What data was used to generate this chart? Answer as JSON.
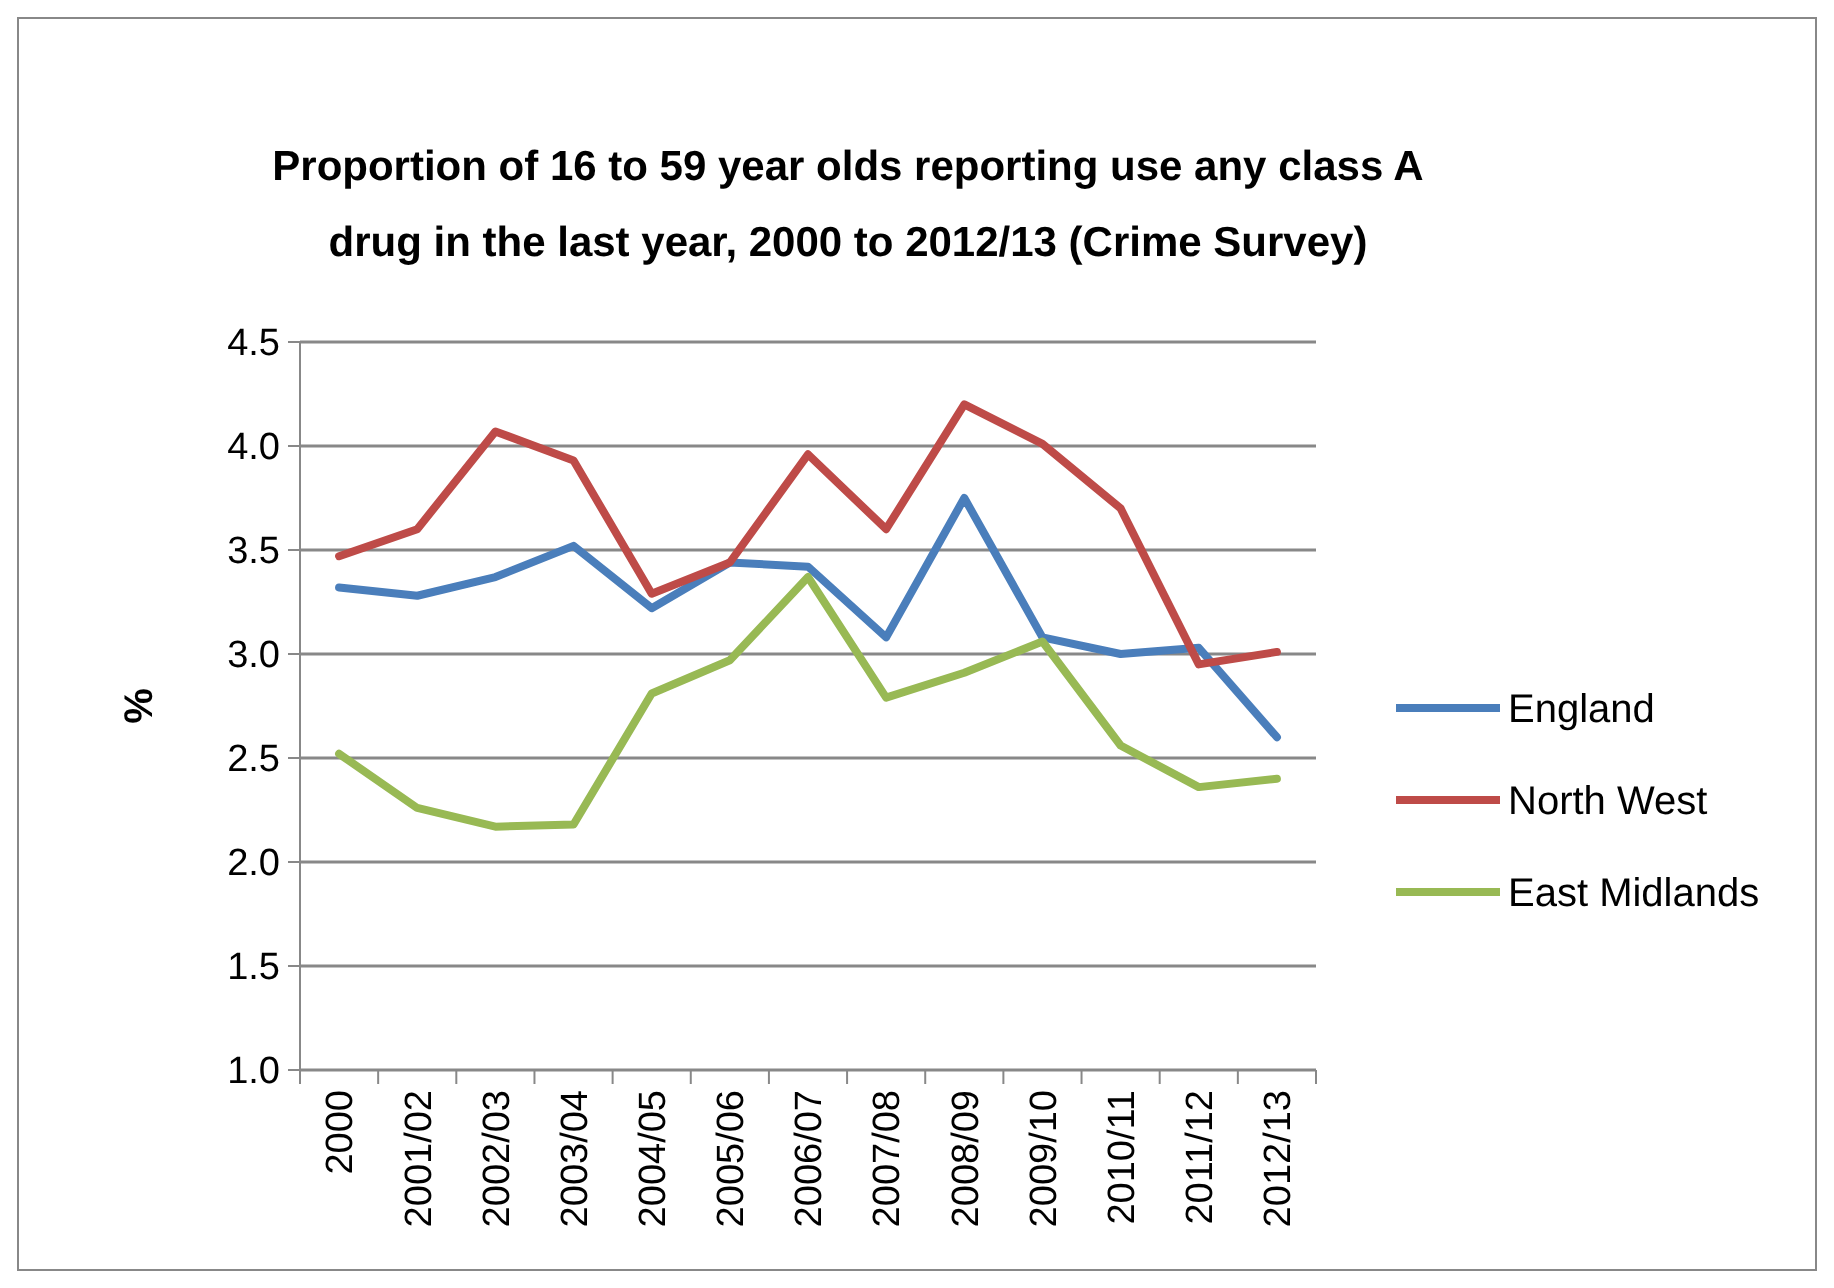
{
  "chart_data": {
    "type": "line",
    "title": "Proportion of 16 to 59 year olds reporting use any class A drug in the last year, 2000 to 2012/13 (Crime Survey)",
    "ylabel": "%",
    "categories": [
      "2000",
      "2001/02",
      "2002/03",
      "2003/04",
      "2004/05",
      "2005/06",
      "2006/07",
      "2007/08",
      "2008/09",
      "2009/10",
      "2010/11",
      "2011/12",
      "2012/13"
    ],
    "series": [
      {
        "name": "England",
        "color": "#4a7ebb",
        "values": [
          3.32,
          3.28,
          3.37,
          3.52,
          3.22,
          3.44,
          3.42,
          3.08,
          3.75,
          3.08,
          3.0,
          3.03,
          2.6
        ]
      },
      {
        "name": "North West",
        "color": "#be4b48",
        "values": [
          3.47,
          3.6,
          4.07,
          3.93,
          3.29,
          3.44,
          3.96,
          3.6,
          4.2,
          4.01,
          3.7,
          2.95,
          3.01
        ]
      },
      {
        "name": "East Midlands",
        "color": "#98b954",
        "values": [
          2.52,
          2.26,
          2.17,
          2.18,
          2.81,
          2.97,
          3.37,
          2.79,
          2.91,
          3.06,
          2.56,
          2.36,
          2.4
        ]
      }
    ],
    "ylim": [
      1.0,
      4.5
    ],
    "yticks": [
      {
        "value": 1,
        "label": "1.0"
      },
      {
        "value": 1.5,
        "label": "1.5"
      },
      {
        "value": 2,
        "label": "2.0"
      },
      {
        "value": 2.5,
        "label": "2.5"
      },
      {
        "value": 3,
        "label": "3.0"
      },
      {
        "value": 3.5,
        "label": "3.5"
      },
      {
        "value": 4,
        "label": "4.0"
      },
      {
        "value": 4.5,
        "label": "4.5"
      }
    ],
    "grid": "y",
    "legend": "right",
    "marker": "none",
    "line_style": "solid"
  }
}
